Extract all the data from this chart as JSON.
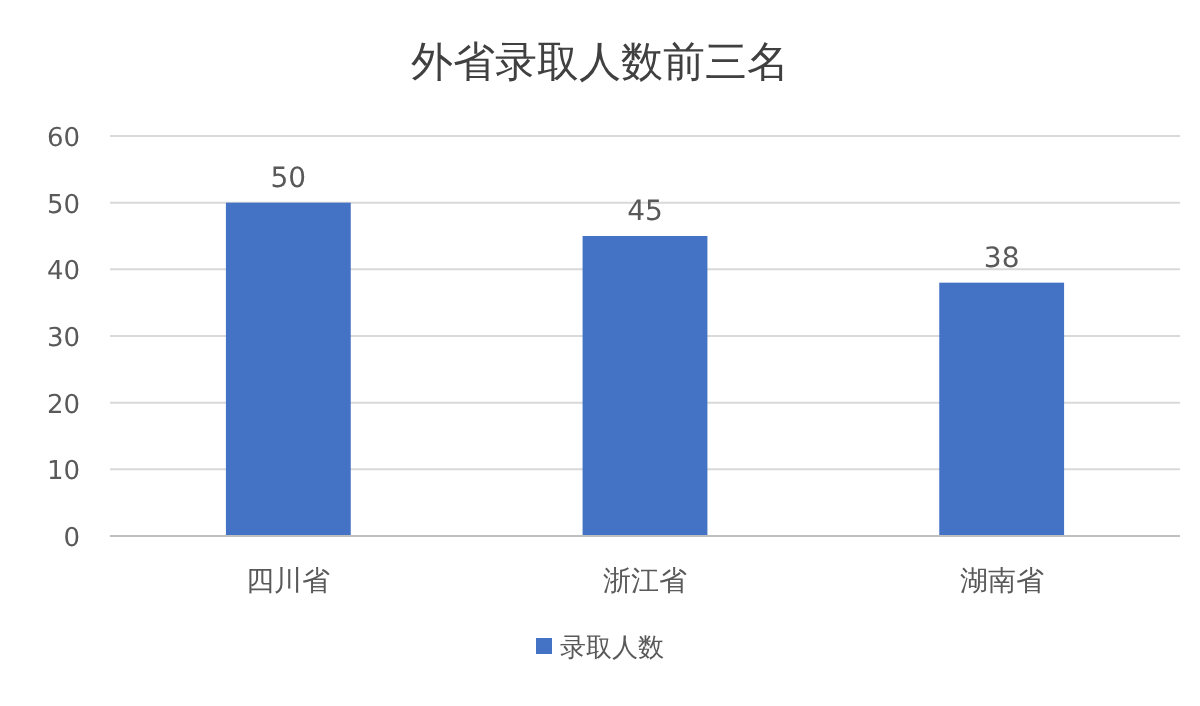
{
  "chart_data": {
    "type": "bar",
    "title": "外省录取人数前三名",
    "categories": [
      "四川省",
      "浙江省",
      "湖南省"
    ],
    "series": [
      {
        "name": "录取人数",
        "color": "#4472c4",
        "values": [
          50,
          45,
          38
        ]
      }
    ],
    "ylim": [
      0,
      60
    ],
    "yticks": [
      0,
      10,
      20,
      30,
      40,
      50,
      60
    ],
    "grid": "y",
    "legend": "bottom",
    "data_labels": true
  }
}
